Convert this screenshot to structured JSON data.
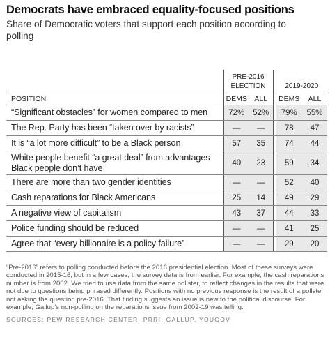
{
  "title": "Democrats have embraced equality-focused positions",
  "subtitle": "Share of Democratic voters that support each position according to polling",
  "column_groups": {
    "pre": [
      "PRE-2016",
      "ELECTION"
    ],
    "post": "2019-2020"
  },
  "headers": {
    "position": "POSITION",
    "dems1": "DEMS",
    "all1": "ALL",
    "dems2": "DEMS",
    "all2": "ALL"
  },
  "chart_data": {
    "type": "table",
    "columns": [
      "POSITION",
      "Pre-2016 DEMS",
      "Pre-2016 ALL",
      "2019-2020 DEMS",
      "2019-2020 ALL"
    ],
    "rows": [
      {
        "position": "“Significant obstacles” for women compared to men",
        "pre_dems": "72%",
        "pre_all": "52%",
        "post_dems": "79%",
        "post_all": "55%"
      },
      {
        "position": "The Rep. Party has been “taken over by racists”",
        "pre_dems": "—",
        "pre_all": "—",
        "post_dems": "78",
        "post_all": "47"
      },
      {
        "position": "It is “a lot more difficult” to be a Black person",
        "pre_dems": "57",
        "pre_all": "35",
        "post_dems": "74",
        "post_all": "44"
      },
      {
        "position": "White people benefit “a great deal” from advantages Black people don’t have",
        "pre_dems": "40",
        "pre_all": "23",
        "post_dems": "59",
        "post_all": "34"
      },
      {
        "position": "There are more than two gender identities",
        "pre_dems": "—",
        "pre_all": "—",
        "post_dems": "52",
        "post_all": "40"
      },
      {
        "position": "Cash reparations for Black Americans",
        "pre_dems": "25",
        "pre_all": "14",
        "post_dems": "49",
        "post_all": "29"
      },
      {
        "position": "A negative view of capitalism",
        "pre_dems": "43",
        "pre_all": "37",
        "post_dems": "44",
        "post_all": "33"
      },
      {
        "position": "Police funding should be reduced",
        "pre_dems": "—",
        "pre_all": "—",
        "post_dems": "41",
        "post_all": "25"
      },
      {
        "position": "Agree that “every billionaire is a policy failure”",
        "pre_dems": "—",
        "pre_all": "—",
        "post_dems": "29",
        "post_all": "20"
      }
    ]
  },
  "note": "“Pre-2016” refers to polling conducted before the 2016 presidential election. Most of these surveys were conducted in 2015-16, but in a few cases, the survey data is from earlier. For example, the cash reparations number is from 2002. We tried to use data from the same pollster, to reflect changes in the results that were not due to questions being phrased differently. Positions with no previous response is the result of a pollster not asking the question pre-2016. That finding suggests an issue is new to the political discourse. For example, Gallup’s non-polling on the reparations issue from 2002-19 was telling.",
  "sources": "SOURCES: PEW RESEARCH CENTER, PRRI, GALLUP, YOUGOV"
}
